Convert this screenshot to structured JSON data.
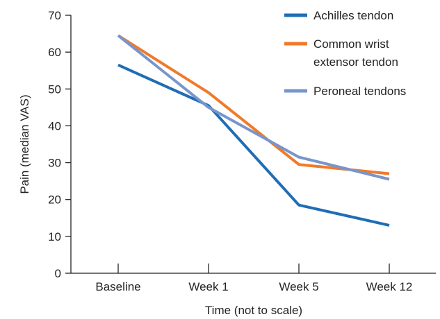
{
  "chart_data": {
    "type": "line",
    "title": "",
    "xlabel": "Time (not to scale)",
    "ylabel": "Pain (median VAS)",
    "categories": [
      "Baseline",
      "Week 1",
      "Week 5",
      "Week 12"
    ],
    "ylim": [
      0,
      70
    ],
    "yticks": [
      0,
      10,
      20,
      30,
      40,
      50,
      60,
      70
    ],
    "grid": false,
    "legend_position": "top-right",
    "series": [
      {
        "name": "Achilles tendon",
        "color": "#1f6db5",
        "values": [
          56.5,
          45.5,
          18.5,
          13
        ]
      },
      {
        "name": "Common wrist extensor tendon",
        "name_lines": [
          "Common wrist",
          "extensor tendon"
        ],
        "color": "#f07a2a",
        "values": [
          64.5,
          49,
          29.5,
          27
        ]
      },
      {
        "name": "Peroneal tendons",
        "color": "#7895cc",
        "values": [
          64.5,
          45,
          31.5,
          25.5
        ]
      }
    ]
  }
}
